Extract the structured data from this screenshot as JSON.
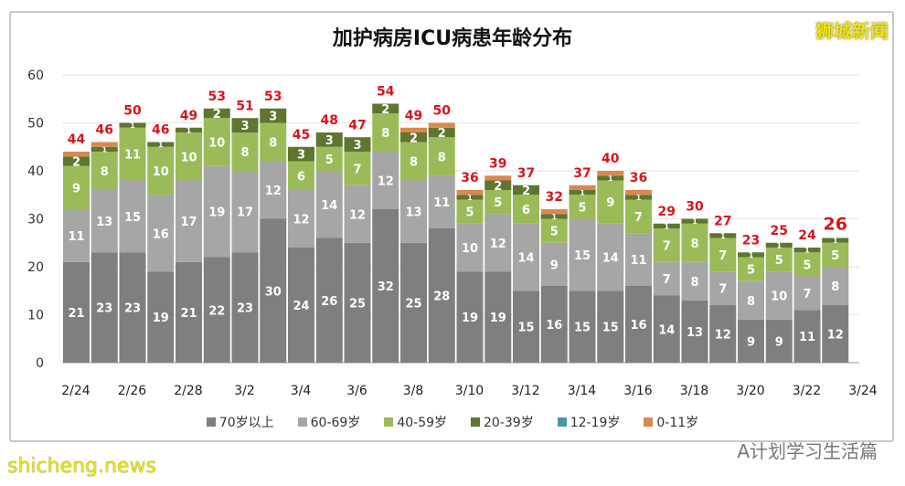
{
  "chart_data": {
    "type": "bar",
    "stacked": true,
    "title": "加护病房ICU病患年龄分布",
    "categories": [
      "2/24",
      "2/25",
      "2/26",
      "2/27",
      "2/28",
      "3/1",
      "3/2",
      "3/3",
      "3/4",
      "3/5",
      "3/6",
      "3/7",
      "3/8",
      "3/9",
      "3/10",
      "3/11",
      "3/12",
      "3/13",
      "3/14",
      "3/15",
      "3/16",
      "3/17",
      "3/18",
      "3/19",
      "3/20",
      "3/21",
      "3/22",
      "3/23"
    ],
    "x_tick_labels": [
      "2/24",
      "2/26",
      "2/28",
      "3/2",
      "3/4",
      "3/6",
      "3/8",
      "3/10",
      "3/12",
      "3/14",
      "3/16",
      "3/18",
      "3/20",
      "3/22",
      "3/24"
    ],
    "ylim": [
      0,
      60
    ],
    "y_ticks": [
      0,
      10,
      20,
      30,
      40,
      50,
      60
    ],
    "grid": true,
    "legend_position": "bottom",
    "series": [
      {
        "name": "70岁以上",
        "color": "#7f7f7f",
        "values": [
          21,
          23,
          23,
          19,
          21,
          22,
          23,
          30,
          24,
          26,
          25,
          32,
          25,
          28,
          19,
          19,
          15,
          16,
          15,
          15,
          16,
          14,
          13,
          12,
          9,
          9,
          11,
          12
        ]
      },
      {
        "name": "60-69岁",
        "color": "#a6a6a6",
        "values": [
          11,
          13,
          15,
          16,
          17,
          19,
          17,
          12,
          12,
          14,
          12,
          12,
          13,
          11,
          10,
          12,
          14,
          9,
          15,
          14,
          11,
          7,
          8,
          7,
          8,
          10,
          7,
          8
        ]
      },
      {
        "name": "40-59岁",
        "color": "#9bbb59",
        "values": [
          9,
          8,
          11,
          10,
          10,
          10,
          8,
          8,
          6,
          5,
          7,
          8,
          8,
          8,
          5,
          5,
          6,
          5,
          5,
          9,
          7,
          7,
          8,
          7,
          5,
          5,
          5,
          5
        ]
      },
      {
        "name": "20-39岁",
        "color": "#5f7530",
        "values": [
          2,
          1,
          1,
          1,
          1,
          2,
          3,
          3,
          3,
          3,
          3,
          2,
          2,
          2,
          1,
          2,
          2,
          1,
          1,
          1,
          1,
          1,
          1,
          1,
          1,
          1,
          1,
          1
        ]
      },
      {
        "name": "12-19岁",
        "color": "#4a96a6",
        "values": [
          0,
          0,
          0,
          0,
          0,
          0,
          0,
          0,
          0,
          0,
          0,
          0,
          0,
          0,
          0,
          0,
          0,
          0,
          0,
          0,
          0,
          0,
          0,
          0,
          0,
          0,
          0,
          0
        ]
      },
      {
        "name": "0-11岁",
        "color": "#d9894f",
        "values": [
          1,
          1,
          0,
          0,
          0,
          0,
          0,
          0,
          0,
          0,
          0,
          0,
          1,
          1,
          1,
          1,
          0,
          1,
          1,
          1,
          1,
          0,
          0,
          0,
          0,
          0,
          0,
          0
        ]
      }
    ],
    "totals": [
      44,
      46,
      50,
      46,
      49,
      53,
      51,
      53,
      45,
      48,
      47,
      54,
      49,
      50,
      36,
      39,
      37,
      32,
      37,
      40,
      36,
      29,
      30,
      27,
      23,
      25,
      24,
      26
    ],
    "total_label_color": "#d9141b"
  },
  "logo": "狮城新闻",
  "watermarks": {
    "wechat": "A计划学习生活篇",
    "site": "shicheng.news"
  }
}
